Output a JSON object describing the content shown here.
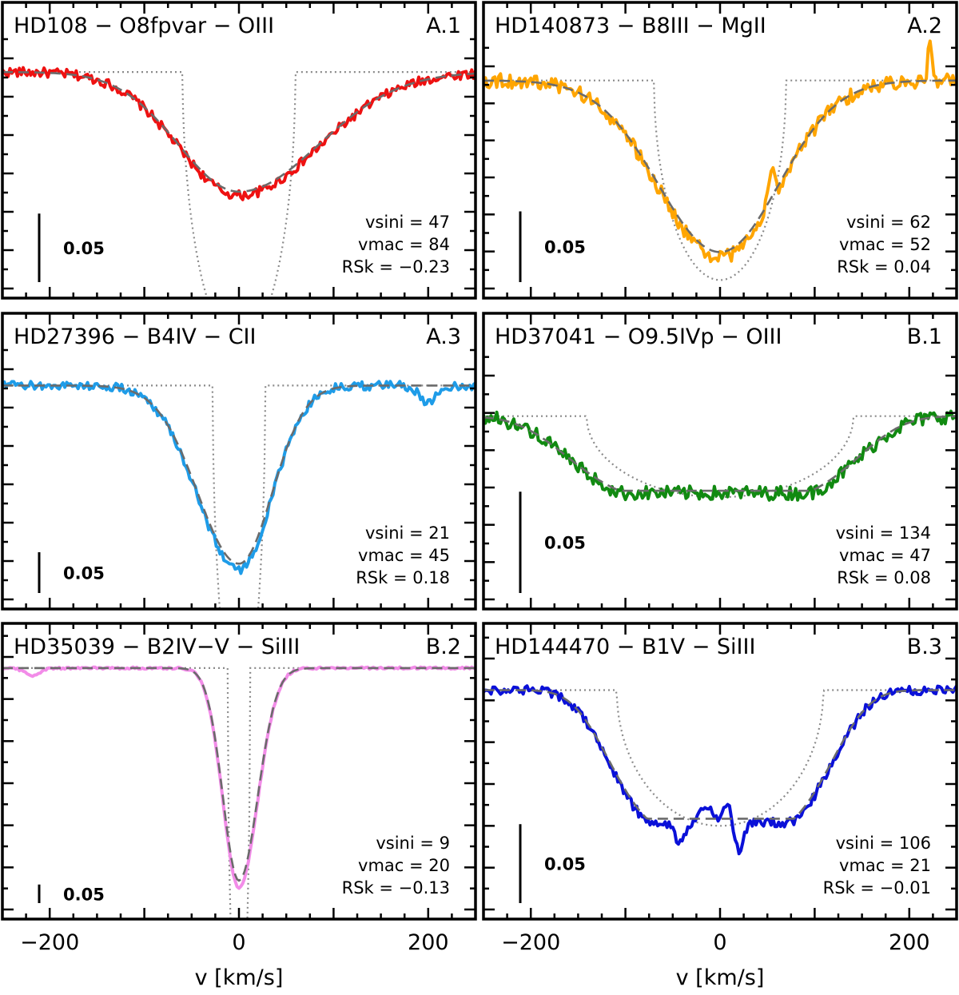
{
  "chart_data": [
    {
      "type": "line",
      "title": "HD108 − O8fpvar − OIII",
      "panel_id": "A.1",
      "color": "#ee1111",
      "x_range": [
        -250,
        250
      ],
      "xlabel": "",
      "y_range": [
        -0.158,
        0.01
      ],
      "params": {
        "vsini": 47,
        "vmac": 84,
        "rsk": -0.23
      },
      "param_text": [
        "vsini = 47",
        "vmac = 84",
        "RSk = −0.23"
      ],
      "scale_bar": {
        "value": 0.05,
        "label": "0.05"
      },
      "profile": {
        "depth": 0.09,
        "vsini": 47,
        "vmac": 84,
        "skew": -0.23
      },
      "rotation_only_depth": 0.2,
      "noise": 0.0035,
      "features": []
    },
    {
      "type": "line",
      "title": "HD140873 − B8III − MgII",
      "panel_id": "A.2",
      "color": "#ffa500",
      "x_range": [
        -250,
        250
      ],
      "xlabel": "",
      "y_range": [
        -0.147,
        0.01
      ],
      "params": {
        "vsini": 62,
        "vmac": 52,
        "rsk": 0.04
      },
      "param_text": [
        "vsini = 62",
        "vmac = 52",
        "RSk = 0.04"
      ],
      "scale_bar": {
        "value": 0.05,
        "label": "0.05"
      },
      "profile": {
        "depth": 0.125,
        "vsini": 62,
        "vmac": 52,
        "skew": 0.04
      },
      "rotation_only_depth": 0.141,
      "noise": 0.005,
      "features": [
        {
          "v": 222,
          "h": 0.03,
          "w": 2
        },
        {
          "v": 54,
          "h": 0.025,
          "w": 3
        }
      ]
    },
    {
      "type": "line",
      "title": "HD27396 − B4IV − CII",
      "panel_id": "A.3",
      "color": "#1e9ce8",
      "x_range": [
        -250,
        250
      ],
      "xlabel": "",
      "y_range": [
        -0.262,
        0.02
      ],
      "params": {
        "vsini": 21,
        "vmac": 45,
        "rsk": 0.18
      },
      "param_text": [
        "vsini = 21",
        "vmac = 45",
        "RSk = 0.18"
      ],
      "scale_bar": {
        "value": 0.05,
        "label": "0.05"
      },
      "profile": {
        "depth": 0.225,
        "vsini": 21,
        "vmac": 45,
        "skew": 0.18
      },
      "rotation_only_depth": 0.4,
      "noise": 0.0055,
      "features": [
        {
          "v": 200,
          "h": -0.02,
          "w": 9
        }
      ]
    },
    {
      "type": "line",
      "title": "HD37041 − O9.5IVp − OIII",
      "panel_id": "B.1",
      "color": "#118a11",
      "x_range": [
        -250,
        250
      ],
      "xlabel": "",
      "y_range": [
        -0.0905,
        0.02
      ],
      "params": {
        "vsini": 134,
        "vmac": 47,
        "rsk": 0.08
      },
      "param_text": [
        "vsini = 134",
        "vmac = 47",
        "RSk = 0.08"
      ],
      "scale_bar": {
        "value": 0.05,
        "label": "0.05"
      },
      "profile": {
        "depth": 0.038,
        "vsini": 134,
        "vmac": 47,
        "skew": 0.08
      },
      "rotation_only_depth": 0.04,
      "noise": 0.0035,
      "features": []
    },
    {
      "type": "line",
      "title": "HD35039 − B2IV−V − SiIII",
      "panel_id": "B.2",
      "color": "#f28ce8",
      "x_range": [
        -250,
        250
      ],
      "xlabel": "v [km/s]",
      "y_range": [
        -0.65,
        0.03
      ],
      "params": {
        "vsini": 9,
        "vmac": 20,
        "rsk": -0.13
      },
      "param_text": [
        "vsini = 9",
        "vmac = 20",
        "RSk = −0.13"
      ],
      "scale_bar": {
        "value": 0.05,
        "label": "0.05"
      },
      "profile": {
        "depth": 0.59,
        "vsini": 9,
        "vmac": 20,
        "skew": -0.13
      },
      "rotation_only_depth": 1.0,
      "noise": 0.003,
      "features": [
        {
          "v": -218,
          "h": -0.02,
          "w": 8
        }
      ]
    },
    {
      "type": "line",
      "title": "HD144470 − B1V − SiIII",
      "panel_id": "B.3",
      "color": "#0a10d8",
      "x_range": [
        -250,
        250
      ],
      "xlabel": "v [km/s]",
      "y_range": [
        -0.139,
        0.02
      ],
      "params": {
        "vsini": 106,
        "vmac": 21,
        "rsk": -0.01
      },
      "param_text": [
        "vsini = 106",
        "vmac = 21",
        "RSk = −0.01"
      ],
      "scale_bar": {
        "value": 0.05,
        "label": "0.05"
      },
      "profile": {
        "depth": 0.084,
        "vsini": 106,
        "vmac": 21,
        "skew": -0.01
      },
      "rotation_only_depth": 0.086,
      "noise": 0.003,
      "features": [
        {
          "v": -42,
          "h": -0.012,
          "w": 6
        },
        {
          "v": 20,
          "h": -0.018,
          "w": 5
        },
        {
          "v": -15,
          "h": 0.01,
          "w": 6
        },
        {
          "v": 8,
          "h": 0.012,
          "w": 5
        }
      ]
    }
  ],
  "x_ticks": [
    -200,
    0,
    200
  ],
  "x_tick_labels": [
    "−200",
    "0",
    "200"
  ]
}
